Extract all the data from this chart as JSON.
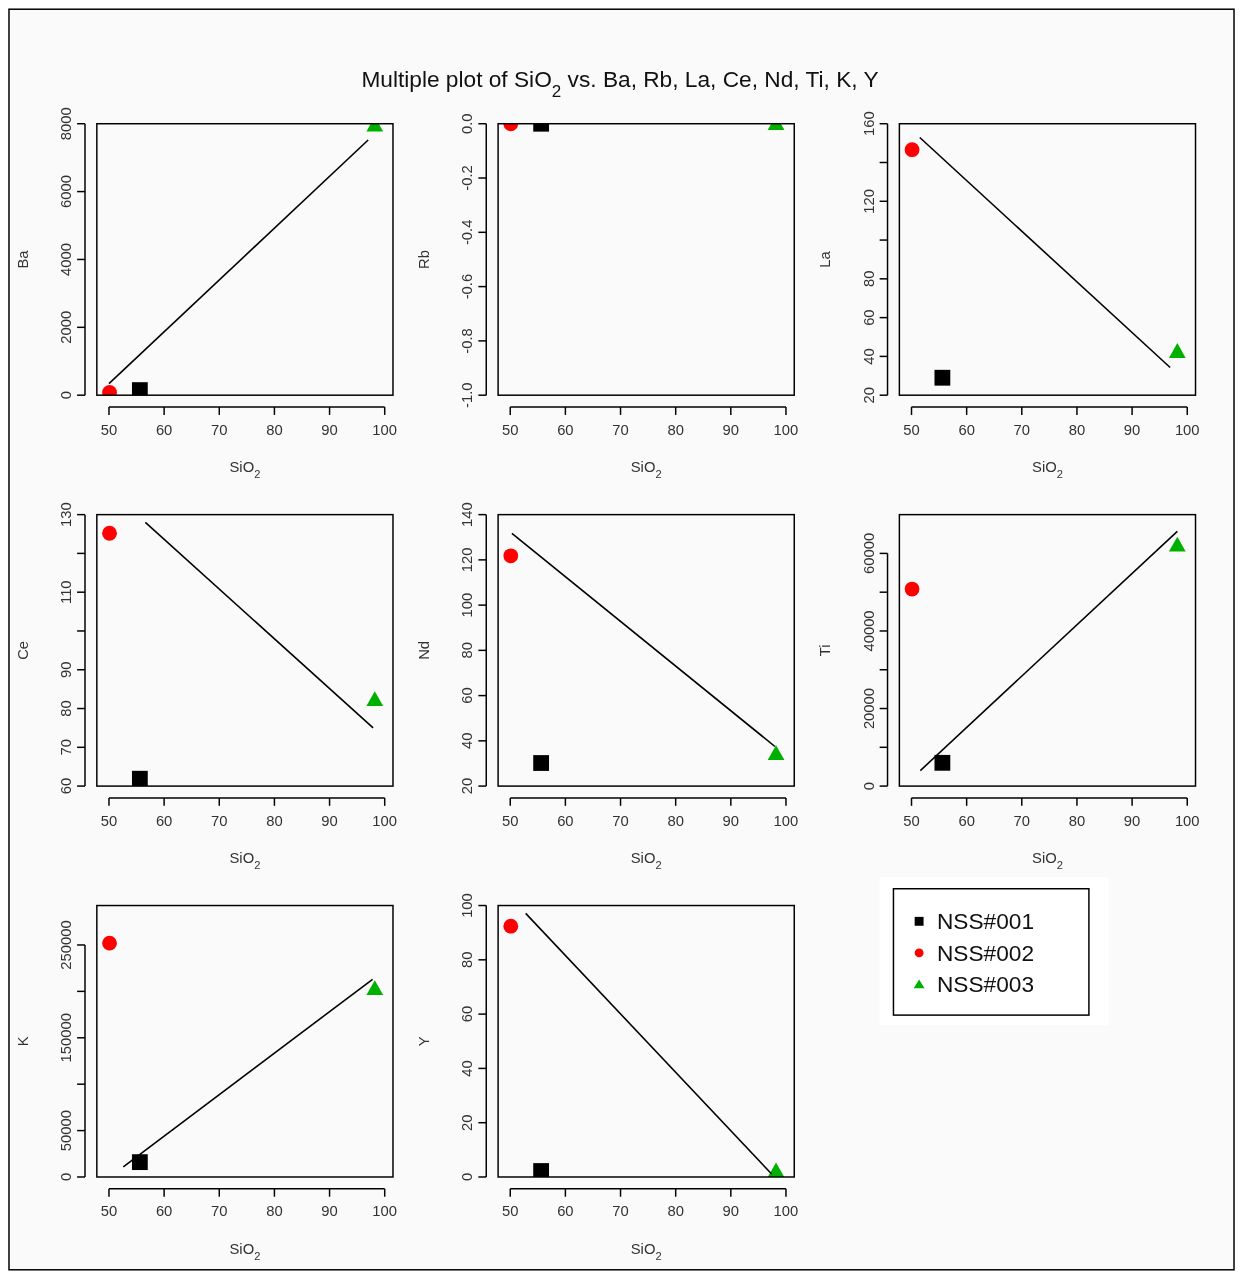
{
  "chart_data": [
    {
      "type": "scatter",
      "xlabel": "SiO$_{2}$",
      "ylabel": "Ba",
      "xlim": [
        47.8,
        101.5
      ],
      "xticks": [
        50,
        60,
        70,
        80,
        90,
        100
      ],
      "ylim": [
        0,
        8000
      ],
      "yticks": [
        0,
        2000,
        4000,
        6000,
        8000
      ],
      "series": [
        {
          "color": "#000000",
          "marker": "square",
          "x": [
            55.6
          ],
          "values": [
            150
          ]
        },
        {
          "color": "#ff0000",
          "marker": "circle",
          "x": [
            50.1
          ],
          "values": [
            80
          ]
        },
        {
          "color": "#00b000",
          "marker": "triangle",
          "x": [
            98.2
          ],
          "values": [
            7960
          ]
        },
        {
          "type": "line",
          "color": "#000000",
          "marker": "none",
          "x": [
            50,
            97
          ],
          "values": [
            340,
            7520
          ]
        }
      ]
    },
    {
      "type": "scatter",
      "title": "Multiple plot of SiO$_{2}$ vs. Ba, Rb, La, Ce, Nd, Ti, K, Y",
      "xlabel": "SiO$_{2}$",
      "ylabel": "Rb",
      "xlim": [
        47.8,
        101.5
      ],
      "xticks": [
        50,
        60,
        70,
        80,
        90,
        100
      ],
      "ylim": [
        -1,
        0
      ],
      "yticks": [
        {
          "value": -1,
          "label": "-1.0"
        },
        {
          "value": -0.8,
          "label": "-0.8"
        },
        {
          "value": -0.6,
          "label": "-0.6"
        },
        {
          "value": -0.4,
          "label": "-0.4"
        },
        {
          "value": -0.2,
          "label": "-0.2"
        },
        {
          "value": 0,
          "label": "0.0"
        }
      ],
      "series": [
        {
          "color": "#000000",
          "marker": "square",
          "x": [
            55.6
          ],
          "values": [
            0
          ]
        },
        {
          "color": "#ff0000",
          "marker": "circle",
          "x": [
            50.1
          ],
          "values": [
            0
          ]
        },
        {
          "color": "#00b000",
          "marker": "triangle",
          "x": [
            98.2
          ],
          "values": [
            0
          ]
        }
      ]
    },
    {
      "type": "scatter",
      "xlabel": "SiO$_{2}$",
      "ylabel": "La",
      "xlim": [
        47.8,
        101.5
      ],
      "xticks": [
        50,
        60,
        70,
        80,
        90,
        100
      ],
      "ylim": [
        20,
        160
      ],
      "yticks": [
        20,
        40,
        60,
        80,
        {
          "value": 100,
          "label": null
        },
        120,
        {
          "value": 140,
          "label": null
        },
        160
      ],
      "series": [
        {
          "color": "#000000",
          "marker": "square",
          "x": [
            55.6
          ],
          "values": [
            29
          ]
        },
        {
          "color": "#ff0000",
          "marker": "circle",
          "x": [
            50.1
          ],
          "values": [
            146.6
          ]
        },
        {
          "color": "#00b000",
          "marker": "triangle",
          "x": [
            98.2
          ],
          "values": [
            42.5
          ]
        },
        {
          "type": "line",
          "color": "#000000",
          "marker": "none",
          "x": [
            51.5,
            96.9
          ],
          "values": [
            152.9,
            34.3
          ]
        }
      ]
    },
    {
      "type": "scatter",
      "xlabel": "SiO$_{2}$",
      "ylabel": "Ce",
      "xlim": [
        47.8,
        101.5
      ],
      "xticks": [
        50,
        60,
        70,
        80,
        90,
        100
      ],
      "ylim": [
        60,
        130
      ],
      "yticks": [
        60,
        70,
        80,
        90,
        {
          "value": 100,
          "label": null
        },
        110,
        {
          "value": 120,
          "label": null
        },
        130
      ],
      "series": [
        {
          "color": "#000000",
          "marker": "square",
          "x": [
            55.6
          ],
          "values": [
            61.9
          ]
        },
        {
          "color": "#ff0000",
          "marker": "circle",
          "x": [
            50.1
          ],
          "values": [
            125.2
          ]
        },
        {
          "color": "#00b000",
          "marker": "triangle",
          "x": [
            98.2
          ],
          "values": [
            82.3
          ]
        },
        {
          "type": "line",
          "color": "#000000",
          "marker": "none",
          "x": [
            56.6,
            97.9
          ],
          "values": [
            128,
            75
          ]
        }
      ]
    },
    {
      "type": "scatter",
      "xlabel": "SiO$_{2}$",
      "ylabel": "Nd",
      "xlim": [
        47.8,
        101.5
      ],
      "xticks": [
        50,
        60,
        70,
        80,
        90,
        100
      ],
      "ylim": [
        20,
        140
      ],
      "yticks": [
        20,
        40,
        60,
        80,
        100,
        120,
        140
      ],
      "series": [
        {
          "color": "#000000",
          "marker": "square",
          "x": [
            55.6
          ],
          "values": [
            30.2
          ]
        },
        {
          "color": "#ff0000",
          "marker": "circle",
          "x": [
            50.1
          ],
          "values": [
            121.8
          ]
        },
        {
          "color": "#00b000",
          "marker": "triangle",
          "x": [
            98.2
          ],
          "values": [
            34.3
          ]
        },
        {
          "type": "line",
          "color": "#000000",
          "marker": "none",
          "x": [
            50.3,
            98
          ],
          "values": [
            131.7,
            37.5
          ]
        }
      ]
    },
    {
      "type": "scatter",
      "xlabel": "SiO$_{2}$",
      "ylabel": "Ti",
      "legend": "bottom",
      "xlim": [
        47.8,
        101.5
      ],
      "xticks": [
        50,
        60,
        70,
        80,
        90,
        100
      ],
      "ylim": [
        0,
        70000
      ],
      "yticks": [
        0,
        {
          "value": 10000,
          "label": null
        },
        20000,
        {
          "value": 30000,
          "label": null
        },
        40000,
        {
          "value": 50000,
          "label": null
        },
        60000
      ],
      "series": [
        {
          "name": "NSS#001",
          "color": "#000000",
          "marker": "square",
          "x": [
            55.6
          ],
          "values": [
            6000
          ]
        },
        {
          "name": "NSS#002",
          "color": "#ff0000",
          "marker": "circle",
          "x": [
            50.1
          ],
          "values": [
            50800
          ]
        },
        {
          "name": "NSS#003",
          "color": "#00b000",
          "marker": "triangle",
          "x": [
            98.2
          ],
          "values": [
            62100
          ]
        },
        {
          "type": "line",
          "color": "#000000",
          "marker": "none",
          "x": [
            51.6,
            98.2
          ],
          "values": [
            4000,
            65700
          ]
        }
      ]
    },
    {
      "type": "scatter",
      "xlabel": "SiO$_{2}$",
      "ylabel": "K",
      "xlim": [
        47.8,
        101.5
      ],
      "xticks": [
        50,
        60,
        70,
        80,
        90,
        100
      ],
      "ylim": [
        0,
        292500
      ],
      "yticks": [
        0,
        50000,
        {
          "value": 100000,
          "label": null
        },
        150000,
        {
          "value": 200000,
          "label": null
        },
        250000
      ],
      "series": [
        {
          "color": "#000000",
          "marker": "square",
          "x": [
            55.6
          ],
          "values": [
            16000
          ]
        },
        {
          "color": "#ff0000",
          "marker": "circle",
          "x": [
            50.1
          ],
          "values": [
            252000
          ]
        },
        {
          "color": "#00b000",
          "marker": "triangle",
          "x": [
            98.2
          ],
          "values": [
            203000
          ]
        },
        {
          "type": "line",
          "color": "#000000",
          "marker": "none",
          "x": [
            52.6,
            97.8
          ],
          "values": [
            11000,
            213000
          ]
        }
      ]
    },
    {
      "type": "scatter",
      "xlabel": "SiO$_{2}$",
      "ylabel": "Y",
      "xlim": [
        47.8,
        101.5
      ],
      "xticks": [
        50,
        60,
        70,
        80,
        90,
        100
      ],
      "ylim": [
        0,
        100
      ],
      "yticks": [
        0,
        20,
        40,
        60,
        80,
        100
      ],
      "series": [
        {
          "color": "#000000",
          "marker": "square",
          "x": [
            55.6
          ],
          "values": [
            2.2
          ]
        },
        {
          "color": "#ff0000",
          "marker": "circle",
          "x": [
            50.1
          ],
          "values": [
            92.4
          ]
        },
        {
          "color": "#00b000",
          "marker": "triangle",
          "x": [
            98.2
          ],
          "values": [
            2.2
          ]
        },
        {
          "type": "line",
          "color": "#000000",
          "marker": "none",
          "x": [
            52.8,
            97.4
          ],
          "values": [
            97.1,
            1.1
          ]
        }
      ]
    }
  ]
}
